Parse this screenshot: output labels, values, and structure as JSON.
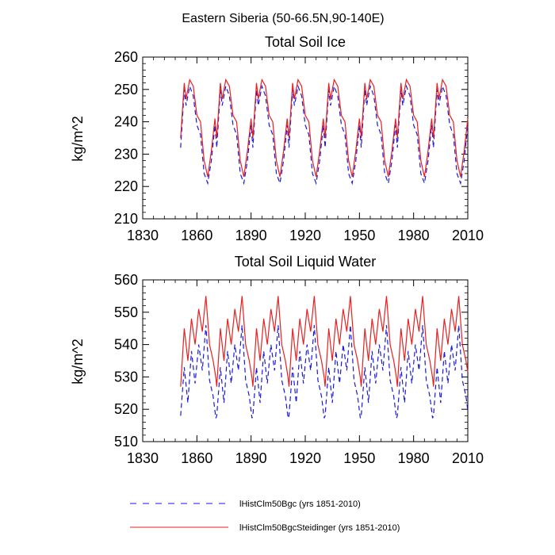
{
  "suptitle": "Eastern Siberia (50-66.5N,90-140E)",
  "chart_data": [
    {
      "type": "line",
      "title": "Total Soil Ice",
      "xlabel": "",
      "ylabel": "kg/m^2",
      "xlim": [
        1830,
        2010
      ],
      "ylim": [
        210,
        260
      ],
      "xticks": [
        1830,
        1860,
        1890,
        1920,
        1950,
        1980,
        2010
      ],
      "yticks": [
        210,
        220,
        230,
        240,
        250,
        260
      ],
      "cycle_years": [
        1851,
        1853,
        1854,
        1856,
        1858,
        1860,
        1862,
        1864,
        1866,
        1868,
        1870
      ],
      "cycle_period": 20,
      "years": [
        1851,
        2010
      ],
      "series": [
        {
          "name": "lHistClm50Bgc (yrs 1851-2010)",
          "style": "dashed",
          "color": "#1a1adb",
          "cycle_values": [
            232,
            250,
            245,
            251,
            248,
            239,
            236,
            224,
            221,
            228,
            239
          ]
        },
        {
          "name": "lHistClm50BgcSteidinger (yrs 1851-2010)",
          "style": "solid",
          "color": "#e82020",
          "cycle_values": [
            235,
            252,
            247,
            253,
            251,
            242,
            240,
            228,
            223,
            231,
            241
          ]
        }
      ]
    },
    {
      "type": "line",
      "title": "Total Soil Liquid Water",
      "xlabel": "",
      "ylabel": "kg/m^2",
      "xlim": [
        1830,
        2010
      ],
      "ylim": [
        510,
        560
      ],
      "xticks": [
        1830,
        1860,
        1890,
        1920,
        1950,
        1980,
        2010
      ],
      "yticks": [
        510,
        520,
        530,
        540,
        550,
        560
      ],
      "cycle_years": [
        1851,
        1853,
        1855,
        1857,
        1859,
        1861,
        1863,
        1865,
        1867,
        1869,
        1871
      ],
      "cycle_period": 20,
      "years": [
        1851,
        2010
      ],
      "series": [
        {
          "name": "lHistClm50Bgc (yrs 1851-2010)",
          "style": "dashed",
          "color": "#1a1adb",
          "cycle_values": [
            518,
            533,
            522,
            538,
            528,
            540,
            532,
            546,
            529,
            524,
            515
          ]
        },
        {
          "name": "lHistClm50BgcSteidinger (yrs 1851-2010)",
          "style": "solid",
          "color": "#e82020",
          "cycle_values": [
            527,
            545,
            535,
            548,
            540,
            551,
            544,
            555,
            540,
            535,
            528
          ]
        }
      ]
    }
  ],
  "legend": {
    "placement": "bottom",
    "entries": [
      {
        "label": "lHistClm50Bgc (yrs 1851-2010)",
        "style": "dashed",
        "color": "#1a1adb"
      },
      {
        "label": "lHistClm50BgcSteidinger (yrs 1851-2010)",
        "style": "solid",
        "color": "#e82020"
      }
    ]
  }
}
